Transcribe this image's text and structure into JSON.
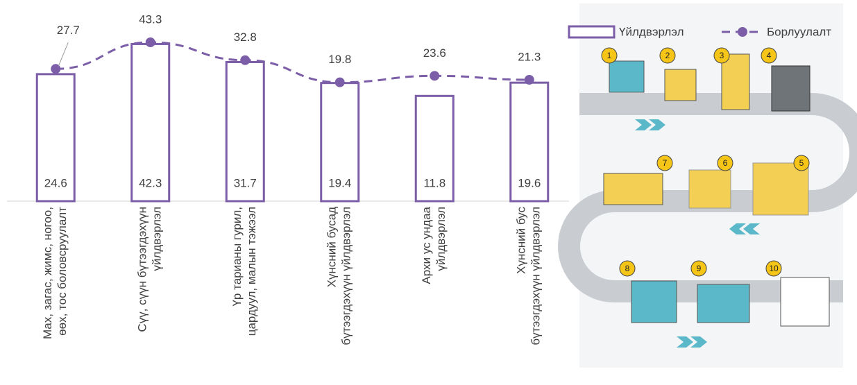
{
  "chart_data": {
    "type": "bar_line",
    "categories": [
      "Мах, загас, жимс, ногоо,\nөөх, тос боловсруулалт",
      "Сүү, сүүн бүтээгдэхүүн\nүйлдвэрлэл",
      "Үр тарианы гурил,\nцардуул, малын тэжээл",
      "Хүнсний бусад\nбүтээгдэхүүн үйлдвэрлэл",
      "Архи ус ундаа\nүйлдвэрлэл",
      "Хүнсний бус\nбүтээгдэхүүн үйлдвэрлэл"
    ],
    "series": [
      {
        "name": "Үйлдвэрлэл",
        "color": "#7b5ea7",
        "kind": "bar",
        "values": [
          24.6,
          42.3,
          31.7,
          19.4,
          11.8,
          19.6
        ]
      },
      {
        "name": "Борлуулалт",
        "color": "#7b5ea7",
        "kind": "line",
        "values": [
          27.7,
          43.3,
          32.8,
          19.8,
          23.6,
          21.3
        ]
      }
    ],
    "ylim": [
      -50,
      60
    ],
    "legend": "top-right"
  },
  "infographic": {
    "steps": [
      "1",
      "2",
      "3",
      "4",
      "5",
      "6",
      "7",
      "8",
      "9",
      "10"
    ]
  }
}
